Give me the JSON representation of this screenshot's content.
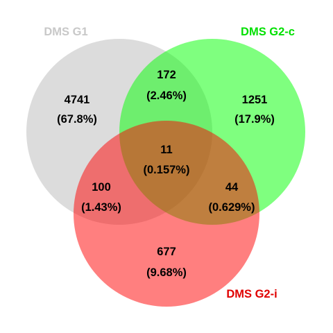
{
  "sets": [
    {
      "id": "g1",
      "label": "DMS G1",
      "fill": "#d3d3d3",
      "label_color": "#c8c8c8"
    },
    {
      "id": "g2c",
      "label": "DMS G2-c",
      "fill": "#00ff00",
      "label_color": "#00e000"
    },
    {
      "id": "g2i",
      "label": "DMS G2-i",
      "fill": "#ff0000",
      "label_color": "#e00000"
    }
  ],
  "regions": {
    "g1_only": {
      "count": "4741",
      "percent": "(67.8%)"
    },
    "g1_g2c": {
      "count": "172",
      "percent": "(2.46%)"
    },
    "g2c_only": {
      "count": "1251",
      "percent": "(17.9%)"
    },
    "all_three": {
      "count": "11",
      "percent": "(0.157%)"
    },
    "g1_g2i": {
      "count": "100",
      "percent": "(1.43%)"
    },
    "g2c_g2i": {
      "count": "44",
      "percent": "(0.629%)"
    },
    "g2i_only": {
      "count": "677",
      "percent": "(9.68%)"
    }
  }
}
